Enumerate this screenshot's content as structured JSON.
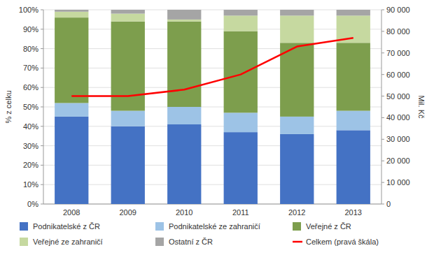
{
  "chart_data": {
    "type": "bar",
    "stacked": true,
    "grid": true,
    "legend": "bottom",
    "ylabel": "% z celku",
    "y2label": "Mil. Kč",
    "categories": [
      "2008",
      "2009",
      "2010",
      "2011",
      "2012",
      "2013"
    ],
    "series": [
      {
        "name": "Podnikatelské z ČR",
        "color": "#4472C4",
        "values": [
          45,
          40,
          41,
          37,
          36,
          38
        ]
      },
      {
        "name": "Podnikatelské ze zahraničí",
        "color": "#9DC3E6",
        "values": [
          7,
          8,
          9,
          10,
          9,
          10
        ]
      },
      {
        "name": "Veřejné z ČR",
        "color": "#7D9E4D",
        "values": [
          44,
          46,
          44,
          42,
          38,
          35
        ]
      },
      {
        "name": "Veřejné ze zahraničí",
        "color": "#C6D9A0",
        "values": [
          3,
          4,
          1,
          8,
          14,
          14
        ]
      },
      {
        "name": "Ostatní z ČR",
        "color": "#A5A5A5",
        "values": [
          1,
          2,
          5,
          3,
          3,
          3
        ]
      },
      {
        "name": "Celkem (pravá škála)",
        "color": "#FF0000",
        "type": "line",
        "axis": "y2",
        "values": [
          50000,
          50000,
          53000,
          60000,
          73000,
          77000
        ]
      }
    ],
    "ylim": [
      0,
      100
    ],
    "yticks": [
      {
        "value": 0,
        "label": "0%"
      },
      {
        "value": 10,
        "label": "10%"
      },
      {
        "value": 20,
        "label": "20%"
      },
      {
        "value": 30,
        "label": "30%"
      },
      {
        "value": 40,
        "label": "40%"
      },
      {
        "value": 50,
        "label": "50%"
      },
      {
        "value": 60,
        "label": "60%"
      },
      {
        "value": 70,
        "label": "70%"
      },
      {
        "value": 80,
        "label": "80%"
      },
      {
        "value": 90,
        "label": "90%"
      },
      {
        "value": 100,
        "label": "100%"
      }
    ],
    "y2lim": [
      0,
      90000
    ],
    "y2ticks": [
      0,
      {
        "value": 10000,
        "label": "10 000"
      },
      {
        "value": 20000,
        "label": "20 000"
      },
      {
        "value": 30000,
        "label": "30 000"
      },
      {
        "value": 40000,
        "label": "40 000"
      },
      {
        "value": 50000,
        "label": "50 000"
      },
      {
        "value": 60000,
        "label": "60 000"
      },
      {
        "value": 70000,
        "label": "70 000"
      },
      {
        "value": 80000,
        "label": "80 000"
      },
      {
        "value": 90000,
        "label": "90 000"
      }
    ]
  }
}
